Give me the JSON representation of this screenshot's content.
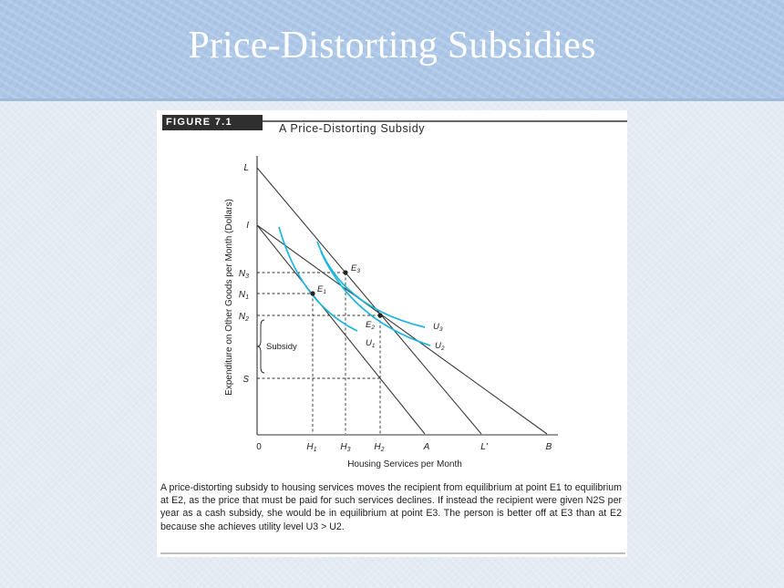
{
  "slide": {
    "title": "Price-Distorting Subsidies"
  },
  "figure": {
    "label": "FIGURE 7.1",
    "title": "A Price-Distorting Subsidy",
    "y_axis_label": "Expenditure on Other Goods per Month (Dollars)",
    "x_axis_label": "Housing Services per Month",
    "y_ticks": [
      "L",
      "I",
      "N3",
      "N1",
      "N2",
      "S"
    ],
    "x_ticks": [
      "0",
      "H1",
      "H3",
      "H2",
      "A",
      "L'",
      "B"
    ],
    "points": [
      "E3",
      "E1",
      "E2"
    ],
    "curves": [
      "U3",
      "U2",
      "U1"
    ],
    "bracket_label": "Subsidy",
    "colors": {
      "indifference_curve": "#1bb5de",
      "budget_line": "#3a3a3a"
    }
  },
  "caption": {
    "text": "A price-distorting subsidy to housing services moves the recipient from equilibrium at point E1 to equilibrium at E2, as the price that must be paid for such services declines. If instead the recipient were given N2S per year as a cash subsidy, she would be in equilibrium at point E3. The person is better off at E3 than at E2 because she achieves utility level U3 > U2."
  }
}
